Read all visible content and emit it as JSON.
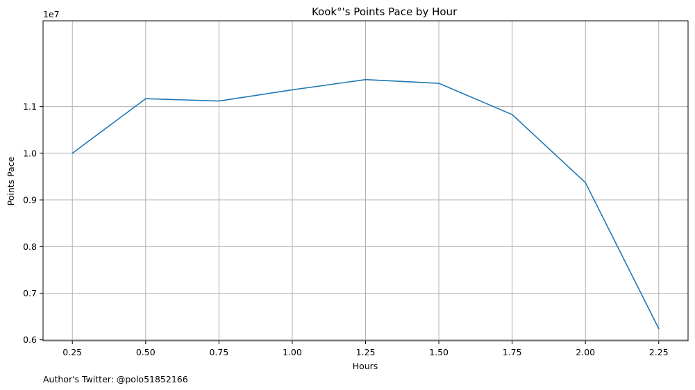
{
  "chart_data": {
    "type": "line",
    "title": "ㅤㅤㅤㅤKook°'s Points Pace by Hour",
    "xlabel": "Hours",
    "ylabel": "Points Pace",
    "y_offset_label": "1e7",
    "y_scale_factor": 10000000,
    "x": [
      0.25,
      0.5,
      0.75,
      1.0,
      1.25,
      1.5,
      1.75,
      2.0,
      2.25
    ],
    "series": [
      {
        "values": [
          10000000,
          11170000,
          11120000,
          11360000,
          11580000,
          11500000,
          10830000,
          9370000,
          6240000
        ],
        "color": "#1f77b4"
      }
    ],
    "xlim": [
      0.15,
      2.35
    ],
    "ylim": [
      5980000,
      12840000
    ],
    "x_ticks": [
      0.25,
      0.5,
      0.75,
      1.0,
      1.25,
      1.5,
      1.75,
      2.0,
      2.25
    ],
    "x_tick_labels": [
      "0.25",
      "0.50",
      "0.75",
      "1.00",
      "1.25",
      "1.50",
      "1.75",
      "2.00",
      "2.25"
    ],
    "y_ticks": [
      6000000,
      7000000,
      8000000,
      9000000,
      10000000,
      11000000
    ],
    "y_tick_labels": [
      "0.6",
      "0.7",
      "0.8",
      "0.9",
      "1.0",
      "1.1"
    ],
    "grid": true,
    "legend": "none"
  },
  "footnote": "Author's Twitter: @polo51852166"
}
